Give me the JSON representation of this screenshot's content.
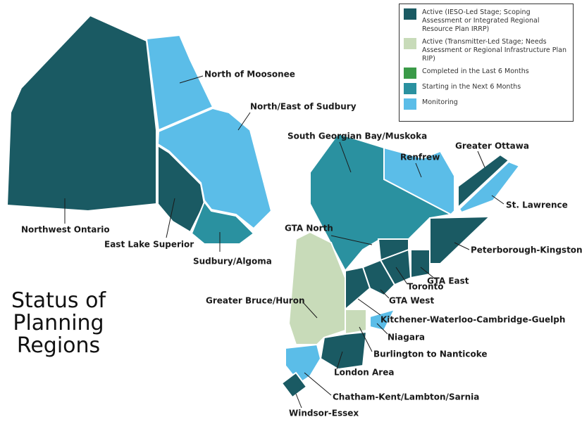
{
  "title": "Status of Planning Regions",
  "legend": [
    "Active (IESO-Led Stage; Scoping Assessment or Integrated Regional Resource Plan IRRP)",
    "Active (Transmitter-Led Stage; Needs Assessment or Regional Infrastructure Plan RIP)",
    "Completed in the Last 6 Months",
    "Starting in the Next 6 Months",
    "Monitoring"
  ],
  "regions": [
    "North of Moosonee",
    "North/East of Sudbury",
    "Northwest Ontario",
    "East Lake Superior",
    "Sudbury/Algoma",
    "South Georgian Bay/Muskoka",
    "Renfrew",
    "Greater Ottawa",
    "St. Lawrence",
    "GTA North",
    "Peterborough-Kingston",
    "GTA East",
    "Toronto",
    "GTA West",
    "Greater Bruce/Huron",
    "Kitchener-Waterloo-Cambridge-Guelph",
    "Niagara",
    "Burlington to Nanticoke",
    "London Area",
    "Chatham-Kent/Lambton/Sarnia",
    "Windsor-Essex"
  ]
}
